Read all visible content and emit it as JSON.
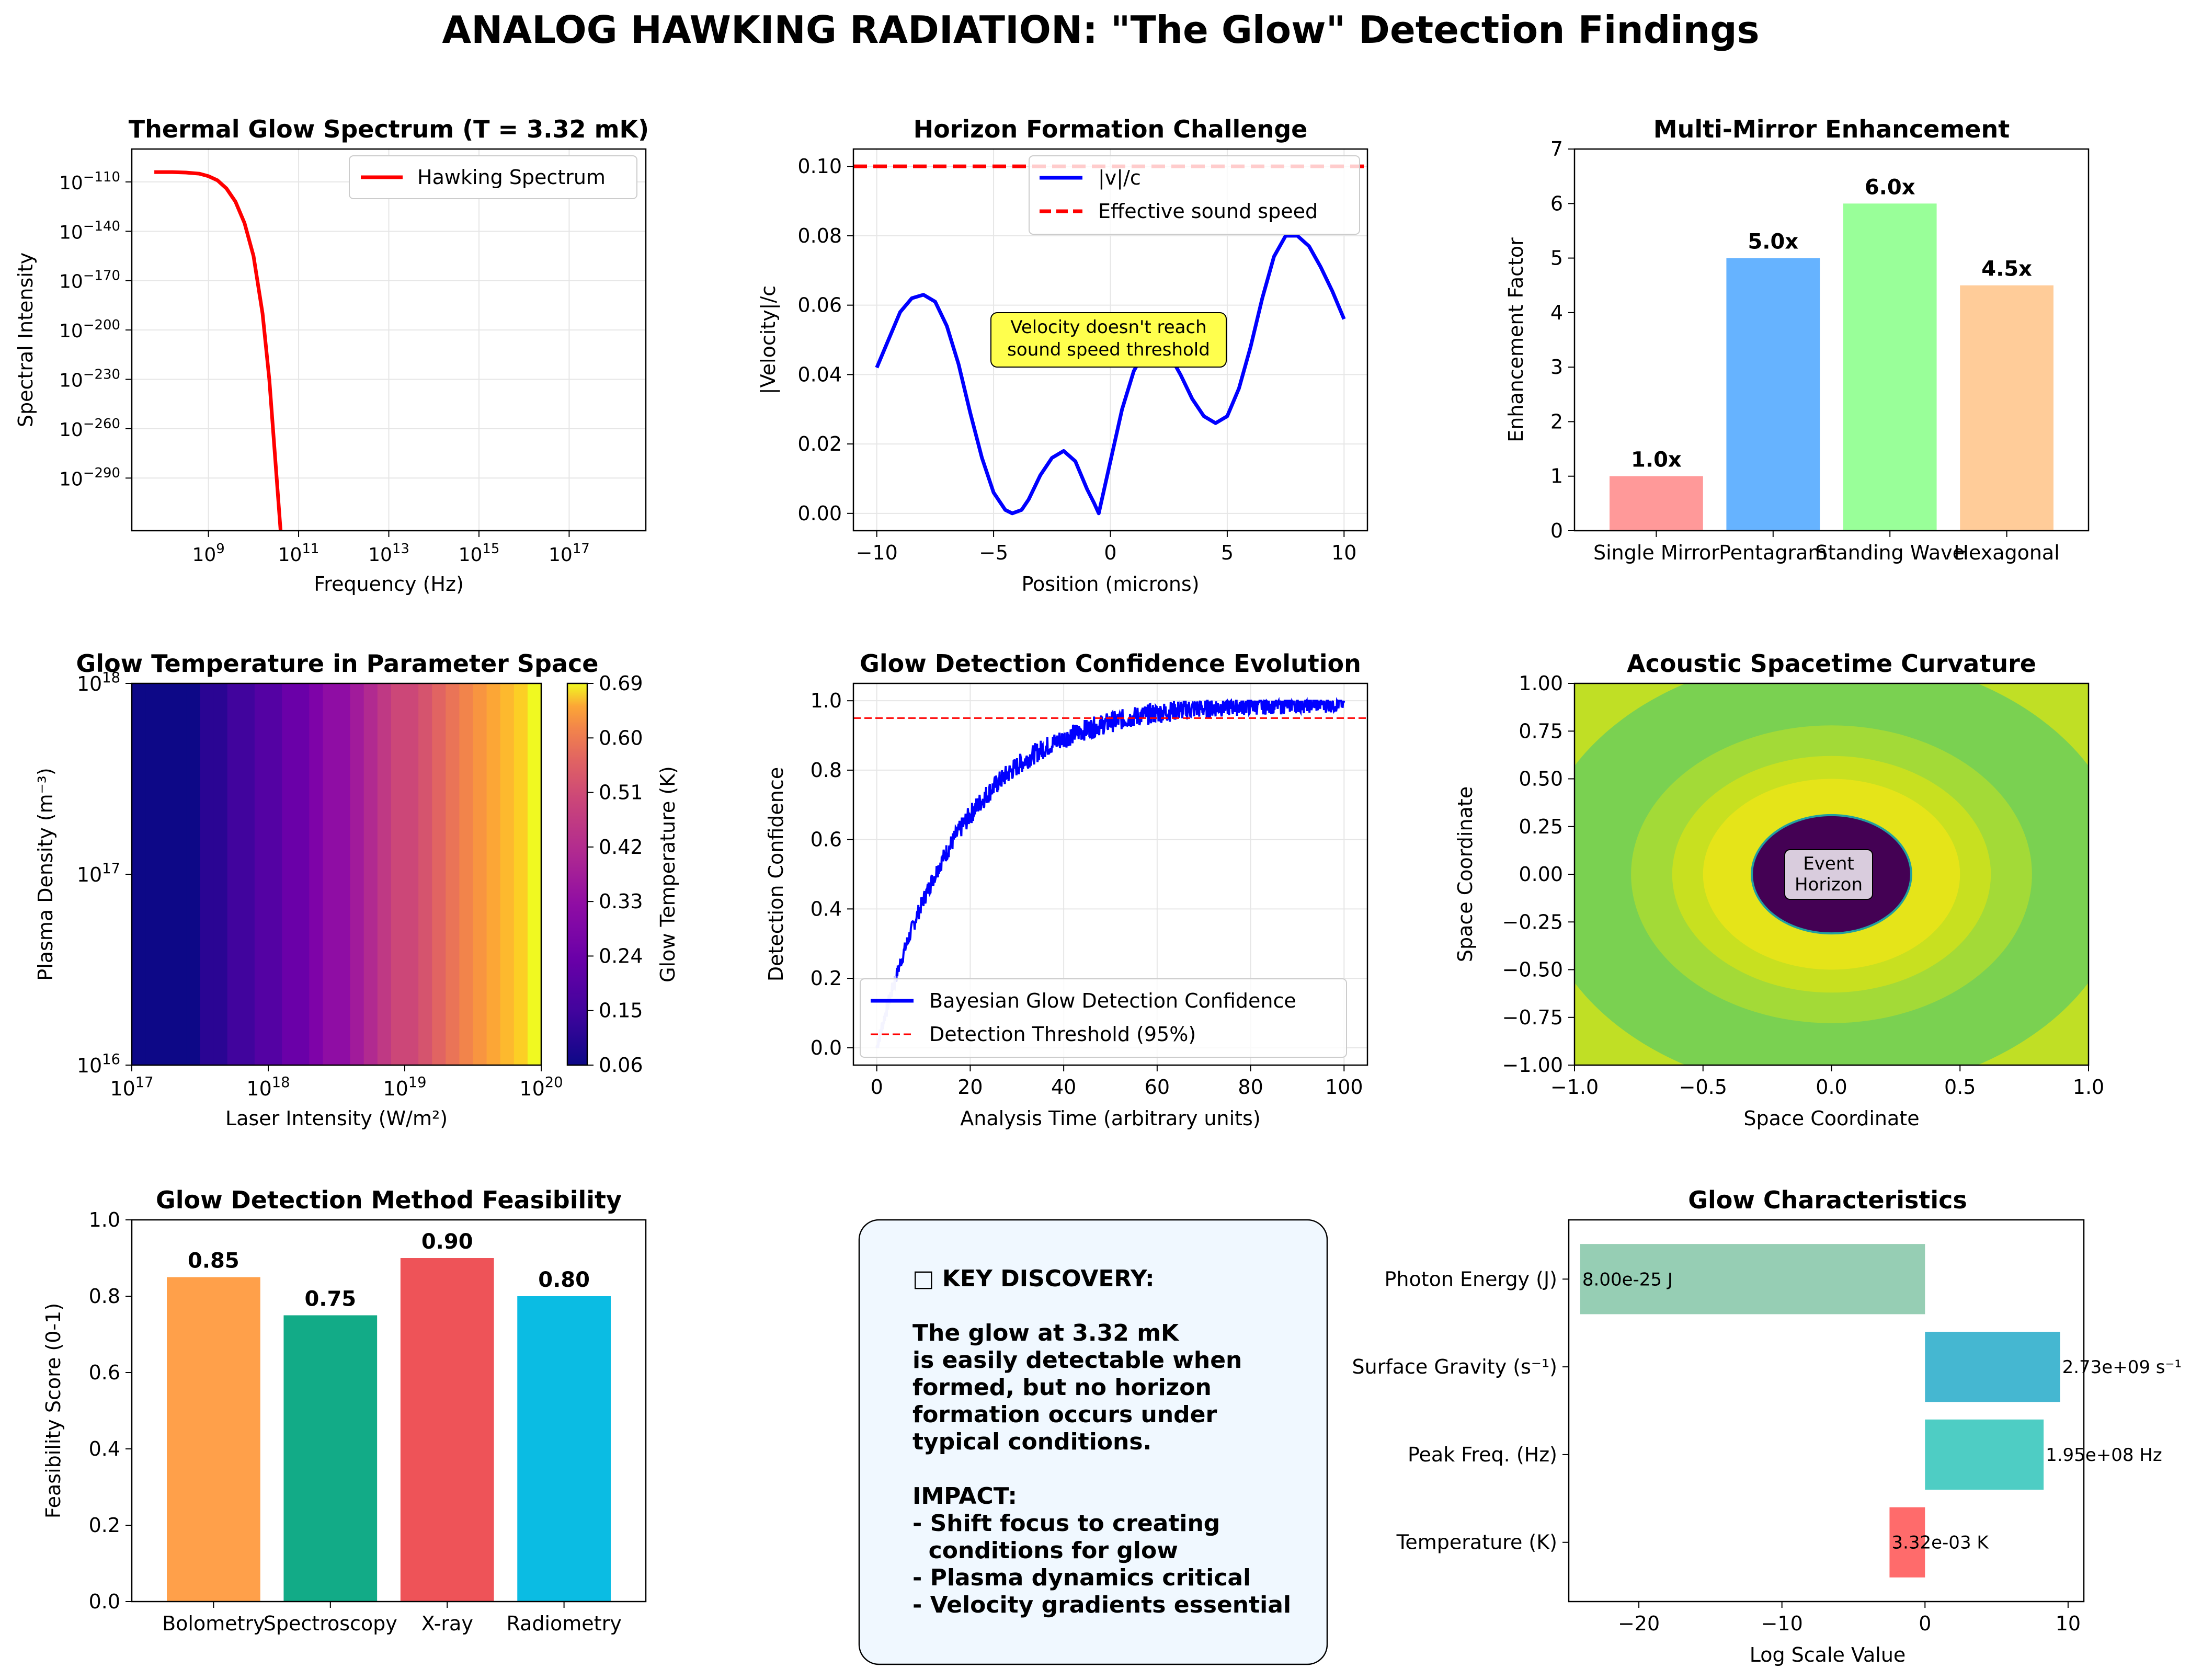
{
  "page": {
    "title": "ANALOG HAWKING RADIATION: \"The Glow\" Detection Findings"
  },
  "colors": {
    "red": "#ff0000",
    "blue": "#0000ff",
    "grid": "#e6e6e6",
    "bar_pink": "#ff9999",
    "bar_blue": "#66b3ff",
    "bar_green": "#99ff99",
    "bar_peach": "#ffcc99",
    "feas_orange": "#ffa04a",
    "feas_teal": "#12ab87",
    "feas_red": "#ee5358",
    "feas_cyan": "#0bbce3",
    "char_red": "#ff6b6b",
    "char_teal": "#4ecdc4",
    "char_blue": "#45b7d1",
    "char_green": "#96ceb4"
  },
  "chart_data": [
    {
      "id": "spectrum",
      "type": "line",
      "title": "Thermal Glow Spectrum (T = 3.32 mK)",
      "xlabel": "Frequency (Hz)",
      "ylabel": "Spectral Intensity",
      "x_scale": "log",
      "y_scale": "log",
      "xlim_exp": [
        7.3,
        18.7
      ],
      "ylim_exp": [
        -322,
        -90
      ],
      "x_ticks": [
        "10^9",
        "10^11",
        "10^13",
        "10^15",
        "10^17"
      ],
      "y_ticks": [
        "10^-110",
        "10^-140",
        "10^-170",
        "10^-200",
        "10^-230",
        "10^-260",
        "10^-290"
      ],
      "series": [
        {
          "name": "Hawking Spectrum",
          "color": "#ff0000",
          "log10_x": [
            7.8,
            8.2,
            8.5,
            8.8,
            9.0,
            9.2,
            9.4,
            9.6,
            9.8,
            10.0,
            10.2,
            10.35,
            10.5,
            10.6
          ],
          "log10_y": [
            -104,
            -104,
            -104.3,
            -105,
            -106.5,
            -109,
            -114,
            -122,
            -135,
            -155,
            -190,
            -230,
            -285,
            -322
          ]
        }
      ],
      "legend": "top-right",
      "grid": true
    },
    {
      "id": "horizon",
      "type": "line",
      "title": "Horizon Formation Challenge",
      "xlabel": "Position (microns)",
      "ylabel": "|Velocity|/c",
      "xlim": [
        -11,
        11
      ],
      "ylim": [
        -0.005,
        0.105
      ],
      "x_ticks": [
        "−10",
        "−5",
        "0",
        "5",
        "10"
      ],
      "y_ticks": [
        "0.00",
        "0.02",
        "0.04",
        "0.06",
        "0.08",
        "0.10"
      ],
      "series": [
        {
          "name": "|v|/c",
          "color": "#0000ff",
          "x": [
            -10,
            -9.5,
            -9,
            -8.5,
            -8,
            -7.5,
            -7,
            -6.5,
            -6,
            -5.5,
            -5,
            -4.5,
            -4.2,
            -3.8,
            -3.5,
            -3,
            -2.5,
            -2,
            -1.5,
            -1,
            -0.7,
            -0.5,
            0,
            0.5,
            1,
            1.5,
            2,
            2.5,
            3,
            3.5,
            4,
            4.5,
            5,
            5.5,
            6,
            6.5,
            7,
            7.5,
            8,
            8.5,
            9,
            9.5,
            10
          ],
          "y": [
            0.042,
            0.05,
            0.058,
            0.062,
            0.063,
            0.061,
            0.054,
            0.043,
            0.029,
            0.016,
            0.006,
            0.001,
            0.0,
            0.001,
            0.004,
            0.011,
            0.016,
            0.018,
            0.015,
            0.007,
            0.003,
            0.0,
            0.015,
            0.03,
            0.041,
            0.047,
            0.049,
            0.046,
            0.04,
            0.033,
            0.028,
            0.026,
            0.028,
            0.036,
            0.048,
            0.062,
            0.074,
            0.08,
            0.08,
            0.077,
            0.071,
            0.064,
            0.056
          ]
        },
        {
          "name": "Effective sound speed",
          "color": "#ff0000",
          "dashed": true,
          "y_const": 0.1
        }
      ],
      "annotation": "Velocity doesn't reach\nsound speed threshold",
      "legend": "top-right",
      "grid": true
    },
    {
      "id": "mirrors",
      "type": "bar",
      "title": "Multi-Mirror Enhancement",
      "ylabel": "Enhancement Factor",
      "ylim": [
        0,
        7
      ],
      "y_ticks": [
        "0",
        "1",
        "2",
        "3",
        "4",
        "5",
        "6",
        "7"
      ],
      "categories": [
        "Single Mirror",
        "Pentagram",
        "Standing Wave",
        "Hexagonal"
      ],
      "values": [
        1.0,
        5.0,
        6.0,
        4.5
      ],
      "labels": [
        "1.0x",
        "5.0x",
        "6.0x",
        "4.5x"
      ],
      "colors": [
        "#ff9999",
        "#66b3ff",
        "#99ff99",
        "#ffcc99"
      ]
    },
    {
      "id": "heatmap",
      "type": "heatmap",
      "title": "Glow Temperature in Parameter Space",
      "xlabel": "Laser Intensity (W/m²)",
      "ylabel": "Plasma Density (m⁻³)",
      "x_scale": "log",
      "y_scale": "log",
      "xlim_exp": [
        17,
        20
      ],
      "ylim_exp": [
        16,
        18
      ],
      "x_ticks": [
        "10^17",
        "10^18",
        "10^19",
        "10^20"
      ],
      "y_ticks": [
        "10^16",
        "10^17",
        "10^18"
      ],
      "colorbar_label": "Glow Temperature (K)",
      "colorbar_ticks": [
        "0.06",
        "0.15",
        "0.24",
        "0.33",
        "0.42",
        "0.51",
        "0.60",
        "0.69"
      ],
      "crange": [
        0.06,
        0.69
      ],
      "colormap": "plasma"
    },
    {
      "id": "confidence",
      "type": "line",
      "title": "Glow Detection Confidence Evolution",
      "xlabel": "Analysis Time (arbitrary units)",
      "ylabel": "Detection Confidence",
      "xlim": [
        -5,
        105
      ],
      "ylim": [
        -0.05,
        1.05
      ],
      "x_ticks": [
        "0",
        "20",
        "40",
        "60",
        "80",
        "100"
      ],
      "y_ticks": [
        "0.0",
        "0.2",
        "0.4",
        "0.6",
        "0.8",
        "1.0"
      ],
      "series": [
        {
          "name": "Bayesian Glow Detection Confidence",
          "color": "#0000ff",
          "model": "1-exp(-t/18)",
          "noise": 0.015
        },
        {
          "name": "Detection Threshold (95%)",
          "color": "#ff0000",
          "dashed": true,
          "y_const": 0.95
        }
      ],
      "legend": "bottom-left",
      "grid": true
    },
    {
      "id": "curvature",
      "type": "heatmap",
      "title": "Acoustic Spacetime Curvature",
      "xlabel": "Space Coordinate",
      "ylabel": "Space Coordinate",
      "xlim": [
        -1,
        1
      ],
      "ylim": [
        -1,
        1
      ],
      "x_ticks": [
        "−1.0",
        "−0.5",
        "0.0",
        "0.5",
        "1.0"
      ],
      "y_ticks": [
        "−1.00",
        "−0.75",
        "−0.50",
        "−0.25",
        "0.00",
        "0.25",
        "0.50",
        "0.75",
        "1.00"
      ],
      "rings": [
        {
          "r": 1.45,
          "color": "#c0df25"
        },
        {
          "r": 1.15,
          "color": "#7ad151"
        },
        {
          "r": 0.78,
          "color": "#a3da37"
        },
        {
          "r": 0.62,
          "color": "#c8e020"
        },
        {
          "r": 0.5,
          "color": "#e5e419"
        },
        {
          "r": 0.31,
          "color": "#440154"
        }
      ],
      "annotation": "Event\nHorizon"
    },
    {
      "id": "feasibility",
      "type": "bar",
      "title": "Glow Detection Method Feasibility",
      "ylabel": "Feasibility Score (0-1)",
      "ylim": [
        0,
        1
      ],
      "y_ticks": [
        "0.0",
        "0.2",
        "0.4",
        "0.6",
        "0.8",
        "1.0"
      ],
      "categories": [
        "Bolometry",
        "Spectroscopy",
        "X-ray",
        "Radiometry"
      ],
      "values": [
        0.85,
        0.75,
        0.9,
        0.8
      ],
      "labels": [
        "0.85",
        "0.75",
        "0.90",
        "0.80"
      ],
      "colors": [
        "#ffa04a",
        "#12ab87",
        "#ee5358",
        "#0bbce3"
      ]
    },
    {
      "id": "characteristics",
      "type": "bar",
      "orientation": "horizontal",
      "title": "Glow Characteristics",
      "xlabel": "Log Scale Value",
      "xlim": [
        -24.9,
        11.1
      ],
      "x_ticks": [
        "−20",
        "−10",
        "0",
        "10"
      ],
      "categories": [
        "Photon Energy (J)",
        "Surface Gravity (s⁻¹)",
        "Peak Freq. (Hz)",
        "Temperature (K)"
      ],
      "values": [
        -24.1,
        9.44,
        8.29,
        -2.48
      ],
      "labels": [
        "8.00e-25 J",
        "2.73e+09 s⁻¹",
        "1.95e+08 Hz",
        "3.32e-03 K"
      ],
      "colors": [
        "#96ceb4",
        "#45b7d1",
        "#4ecdc4",
        "#ff6b6b"
      ]
    }
  ],
  "discovery": {
    "lines": [
      "□ KEY DISCOVERY:",
      "",
      "The glow at 3.32 mK",
      "is easily detectable when",
      "formed, but no horizon",
      "formation occurs under",
      "typical conditions.",
      "",
      "IMPACT:",
      "- Shift focus to creating",
      "  conditions for glow",
      "- Plasma dynamics critical",
      "- Velocity gradients essential"
    ]
  }
}
